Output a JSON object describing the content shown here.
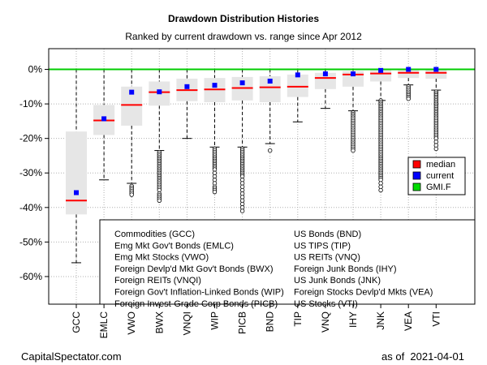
{
  "title": "Drawdown Distribution Histories",
  "subtitle": "Ranked by current drawdown vs. range since Apr 2012",
  "footer": {
    "source": "CapitalSpectator.com",
    "date_prefix": "as of",
    "date": "2021-04-01"
  },
  "colors": {
    "median": "#ff0000",
    "current": "#0000ff",
    "gmif": "#00cc00",
    "box": "#e6e6e6",
    "whisker": "#000000"
  },
  "legend": {
    "items": [
      {
        "label": "median",
        "color": "#ff0000"
      },
      {
        "label": "current",
        "color": "#0000ff"
      },
      {
        "label": "GMI.F",
        "color": "#00dd00"
      }
    ]
  },
  "key_box": {
    "left": [
      "Commodities (GCC)",
      "Emg Mkt Gov't Bonds (EMLC)",
      "Emg Mkt Stocks (VWO)",
      "Foreign Devlp'd Mkt Gov't Bonds (BWX)",
      "Foreign REITs (VNQI)",
      "Foreign Gov't Inflation-Linked Bonds (WIP)",
      "Foreign Invest-Grade Corp Bonds (PICB)"
    ],
    "right": [
      "US Bonds (BND)",
      "US TIPS (TIP)",
      "US REITs (VNQ)",
      "Foreign Junk Bonds (IHY)",
      "US Junk Bonds (JNK)",
      "Foreign Stocks Devlp'd Mkts (VEA)",
      "US Stocks (VTI)"
    ]
  },
  "chart_data": {
    "type": "box",
    "ylim": [
      -0.68,
      0.06
    ],
    "yticks": [
      0,
      -0.1,
      -0.2,
      -0.3,
      -0.4,
      -0.5,
      -0.6
    ],
    "yticklabels": [
      "0%",
      "-10%",
      "-20%",
      "-30%",
      "-40%",
      "-50%",
      "-60%"
    ],
    "grid": true,
    "gmif_line": 0.0,
    "categories": [
      "GCC",
      "EMLC",
      "VWO",
      "BWX",
      "VNQI",
      "WIP",
      "PICB",
      "BND",
      "TIP",
      "VNQ",
      "IHY",
      "JNK",
      "VEA",
      "VTI"
    ],
    "boxes": [
      {
        "q1": -0.42,
        "q3": -0.18,
        "median": -0.38,
        "wlow": -0.56,
        "whigh": 0.0,
        "current": -0.357
      },
      {
        "q1": -0.19,
        "q3": -0.103,
        "median": -0.148,
        "wlow": -0.32,
        "whigh": 0.0,
        "current": -0.143
      },
      {
        "q1": -0.163,
        "q3": -0.05,
        "median": -0.103,
        "wlow": -0.33,
        "whigh": 0.0,
        "current": -0.066
      },
      {
        "q1": -0.105,
        "q3": -0.035,
        "median": -0.066,
        "wlow": -0.235,
        "whigh": 0.0,
        "current": -0.065
      },
      {
        "q1": -0.092,
        "q3": -0.027,
        "median": -0.06,
        "wlow": -0.2,
        "whigh": 0.0,
        "current": -0.05
      },
      {
        "q1": -0.095,
        "q3": -0.025,
        "median": -0.058,
        "wlow": -0.225,
        "whigh": 0.0,
        "current": -0.046
      },
      {
        "q1": -0.09,
        "q3": -0.022,
        "median": -0.054,
        "wlow": -0.225,
        "whigh": 0.0,
        "current": -0.039
      },
      {
        "q1": -0.095,
        "q3": -0.02,
        "median": -0.052,
        "wlow": -0.215,
        "whigh": 0.0,
        "current": -0.034
      },
      {
        "q1": -0.08,
        "q3": -0.015,
        "median": -0.05,
        "wlow": -0.152,
        "whigh": 0.0,
        "current": -0.016
      },
      {
        "q1": -0.057,
        "q3": -0.01,
        "median": -0.025,
        "wlow": -0.113,
        "whigh": 0.0,
        "current": -0.013
      },
      {
        "q1": -0.05,
        "q3": -0.005,
        "median": -0.015,
        "wlow": -0.12,
        "whigh": 0.0,
        "current": -0.013
      },
      {
        "q1": -0.035,
        "q3": -0.002,
        "median": -0.012,
        "wlow": -0.09,
        "whigh": 0.0,
        "current": -0.003
      },
      {
        "q1": -0.025,
        "q3": -0.001,
        "median": -0.01,
        "wlow": -0.045,
        "whigh": 0.0,
        "current": 0.0
      },
      {
        "q1": -0.027,
        "q3": -0.001,
        "median": -0.01,
        "wlow": -0.06,
        "whigh": 0.0,
        "current": 0.0
      }
    ],
    "outliers": [
      {
        "index": 0,
        "values": []
      },
      {
        "index": 1,
        "values": []
      },
      {
        "index": 2,
        "values": [
          -0.338,
          -0.343,
          -0.348,
          -0.353,
          -0.358,
          -0.363
        ]
      },
      {
        "index": 3,
        "values": [
          -0.24,
          -0.245,
          -0.25,
          -0.255,
          -0.26,
          -0.265,
          -0.27,
          -0.275,
          -0.28,
          -0.285,
          -0.29,
          -0.295,
          -0.3,
          -0.305,
          -0.31,
          -0.315,
          -0.32,
          -0.325,
          -0.33,
          -0.335,
          -0.34,
          -0.345,
          -0.35,
          -0.36,
          -0.365,
          -0.37,
          -0.375,
          -0.38
        ]
      },
      {
        "index": 4,
        "values": []
      },
      {
        "index": 5,
        "values": [
          -0.23,
          -0.235,
          -0.24,
          -0.245,
          -0.25,
          -0.255,
          -0.26,
          -0.265,
          -0.27,
          -0.275,
          -0.28,
          -0.285,
          -0.29,
          -0.3,
          -0.31,
          -0.32,
          -0.33,
          -0.34,
          -0.345,
          -0.35,
          -0.355
        ]
      },
      {
        "index": 6,
        "values": [
          -0.23,
          -0.235,
          -0.24,
          -0.245,
          -0.25,
          -0.255,
          -0.26,
          -0.265,
          -0.27,
          -0.275,
          -0.28,
          -0.285,
          -0.29,
          -0.295,
          -0.3,
          -0.305,
          -0.31,
          -0.32,
          -0.33,
          -0.34,
          -0.35,
          -0.36,
          -0.37,
          -0.38,
          -0.39,
          -0.4,
          -0.41
        ]
      },
      {
        "index": 7,
        "values": [
          -0.235
        ]
      },
      {
        "index": 8,
        "values": []
      },
      {
        "index": 9,
        "values": []
      },
      {
        "index": 10,
        "values": [
          -0.125,
          -0.13,
          -0.135,
          -0.14,
          -0.145,
          -0.15,
          -0.155,
          -0.16,
          -0.165,
          -0.17,
          -0.175,
          -0.18,
          -0.185,
          -0.19,
          -0.195,
          -0.2,
          -0.205,
          -0.21,
          -0.215,
          -0.22,
          -0.225,
          -0.23,
          -0.235
        ]
      },
      {
        "index": 11,
        "values": [
          -0.09,
          -0.095,
          -0.1,
          -0.105,
          -0.11,
          -0.115,
          -0.12,
          -0.125,
          -0.13,
          -0.135,
          -0.14,
          -0.145,
          -0.15,
          -0.155,
          -0.16,
          -0.165,
          -0.17,
          -0.175,
          -0.18,
          -0.185,
          -0.19,
          -0.195,
          -0.2,
          -0.205,
          -0.21,
          -0.215,
          -0.22,
          -0.225,
          -0.23,
          -0.235,
          -0.24,
          -0.245,
          -0.25,
          -0.255,
          -0.26,
          -0.265,
          -0.27,
          -0.275,
          -0.28,
          -0.285,
          -0.29,
          -0.295,
          -0.3,
          -0.305,
          -0.31,
          -0.315,
          -0.32,
          -0.33,
          -0.34,
          -0.35
        ]
      },
      {
        "index": 12,
        "values": [
          -0.05,
          -0.055,
          -0.06,
          -0.065,
          -0.07,
          -0.075,
          -0.08,
          -0.085
        ]
      },
      {
        "index": 13,
        "values": [
          -0.065,
          -0.07,
          -0.075,
          -0.08,
          -0.085,
          -0.09,
          -0.095,
          -0.1,
          -0.105,
          -0.11,
          -0.115,
          -0.12,
          -0.125,
          -0.13,
          -0.135,
          -0.14,
          -0.145,
          -0.15,
          -0.155,
          -0.16,
          -0.165,
          -0.17,
          -0.175,
          -0.18,
          -0.185,
          -0.19,
          -0.195,
          -0.2,
          -0.21,
          -0.22,
          -0.23
        ]
      }
    ]
  }
}
